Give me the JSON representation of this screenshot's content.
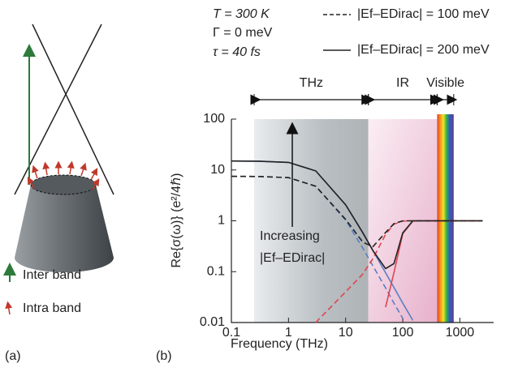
{
  "chart_data": {
    "type": "line",
    "panel_label": "(b)",
    "parameters": [
      "T = 300 K",
      "Γ = 0 meV",
      "τ = 40 fs"
    ],
    "x_label": "Frequency (THz)",
    "y_label": "Re{σ(ω)} (e²/4ℏ)",
    "annotation": [
      "Increasing",
      "|Ef–EDirac|"
    ],
    "log_x": true,
    "log_y": true,
    "xlim": [
      0.1,
      3900
    ],
    "ylim": [
      0.01,
      100
    ],
    "xticks": [
      0.1,
      1,
      10,
      100,
      1000
    ],
    "yticks": [
      0.01,
      0.1,
      1,
      10,
      100
    ],
    "bands": [
      {
        "label": "THz",
        "range": [
          0.25,
          25
        ]
      },
      {
        "label": "IR",
        "range": [
          25,
          400
        ]
      },
      {
        "label": "Visible",
        "range": [
          400,
          780
        ]
      }
    ],
    "x": [
      0.1,
      0.3,
      1,
      3,
      10,
      20,
      30,
      50,
      70,
      100,
      150,
      200,
      500,
      1000,
      2500
    ],
    "series": [
      {
        "color": "#5b7fc4",
        "dashed": true,
        "values": [
          7.5,
          7.45,
          7.06,
          4.8,
          1.03,
          0.29,
          0.13,
          0.048,
          0.024,
          0.012,
          null,
          null,
          null,
          null,
          null
        ]
      },
      {
        "color": "#5b7fc4",
        "dashed": false,
        "values": [
          15,
          14.9,
          14.1,
          9.6,
          2.07,
          0.58,
          0.26,
          0.095,
          0.049,
          0.024,
          0.011,
          null,
          null,
          null,
          null
        ]
      },
      {
        "color": "#e0454f",
        "dashed": true,
        "values": [
          null,
          null,
          null,
          0.01,
          0.04,
          0.09,
          0.18,
          0.54,
          0.86,
          0.99,
          1,
          1,
          1,
          1,
          1
        ]
      },
      {
        "color": "#e0454f",
        "dashed": false,
        "values": [
          null,
          null,
          null,
          null,
          null,
          null,
          null,
          0.02,
          0.095,
          0.56,
          0.99,
          1,
          1,
          1,
          1
        ]
      },
      {
        "name": "|Ef–EDirac| = 100 meV",
        "color": "#222222",
        "dashed": true,
        "values": [
          7.5,
          7.45,
          7.06,
          4.8,
          1.07,
          0.38,
          0.31,
          0.59,
          0.88,
          1,
          1,
          1,
          1,
          1,
          1
        ]
      },
      {
        "name": "|Ef–EDirac| = 200 meV",
        "color": "#222222",
        "dashed": false,
        "values": [
          15,
          14.9,
          14.1,
          9.6,
          2.07,
          0.58,
          0.26,
          0.115,
          0.144,
          0.58,
          1,
          1,
          1,
          1,
          1
        ]
      }
    ]
  },
  "panel_a": {
    "label": "(a)",
    "legend": [
      "Inter band",
      "Intra band"
    ]
  }
}
